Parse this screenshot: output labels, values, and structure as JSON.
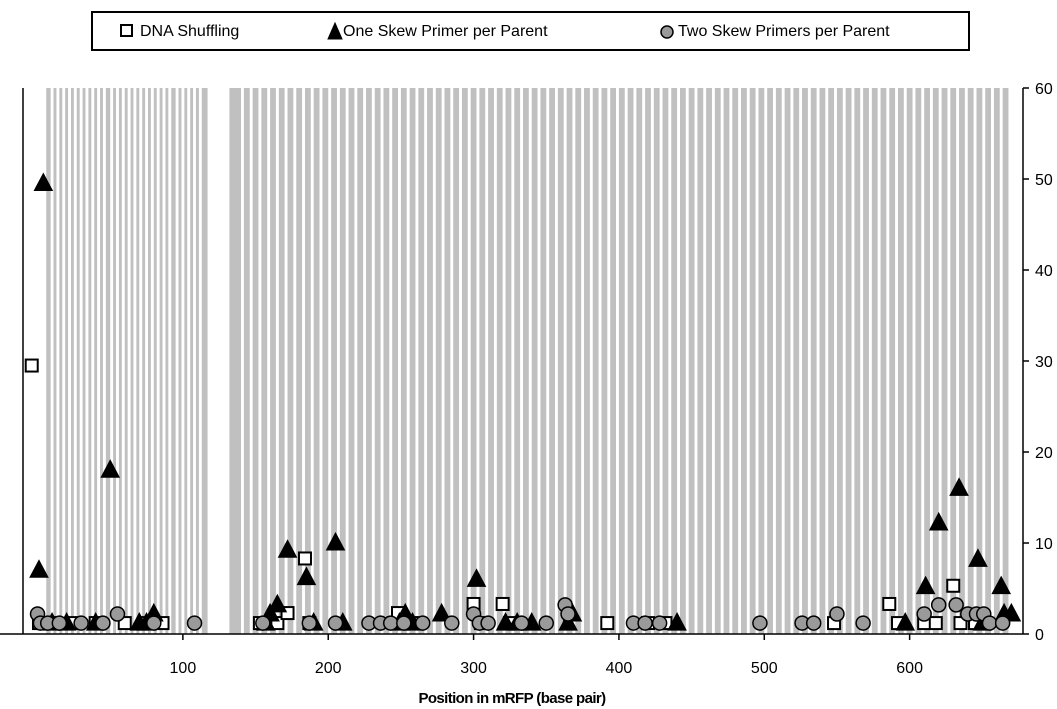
{
  "chart_data": {
    "type": "scatter",
    "xlabel": "Position in mRFP (base pair)",
    "ylabel": "",
    "xlim": [
      -10,
      678
    ],
    "ylim": [
      0,
      60
    ],
    "x_ticks": [
      100,
      200,
      300,
      400,
      500,
      600
    ],
    "y_ticks": [
      0,
      10,
      20,
      30,
      40,
      50,
      60
    ],
    "y_axis_side": "right",
    "legend_position": "top",
    "colors": {
      "band": "#c0c0c0",
      "marker_gray": "#9a9a9a",
      "marker_dark": "#000000"
    },
    "band_ranges": [
      [
        6,
        9
      ],
      [
        11,
        13
      ],
      [
        15,
        17
      ],
      [
        19,
        21
      ],
      [
        23,
        25
      ],
      [
        27,
        29
      ],
      [
        31,
        33
      ],
      [
        35,
        37
      ],
      [
        39,
        41
      ],
      [
        43,
        45
      ],
      [
        47,
        50
      ],
      [
        52,
        54
      ],
      [
        56,
        58
      ],
      [
        60,
        62
      ],
      [
        64,
        66
      ],
      [
        68,
        70
      ],
      [
        72,
        74
      ],
      [
        76,
        78
      ],
      [
        80,
        82
      ],
      [
        84,
        86
      ],
      [
        88,
        90
      ],
      [
        92,
        95
      ],
      [
        97,
        99
      ],
      [
        101,
        103
      ],
      [
        105,
        107
      ],
      [
        109,
        111
      ],
      [
        113,
        117
      ],
      [
        132,
        140
      ],
      [
        142,
        146
      ],
      [
        148,
        152
      ],
      [
        154,
        158
      ],
      [
        160,
        164
      ],
      [
        166,
        170
      ],
      [
        172,
        176
      ],
      [
        178,
        182
      ],
      [
        184,
        188
      ],
      [
        190,
        194
      ],
      [
        196,
        200
      ],
      [
        202,
        206
      ],
      [
        208,
        212
      ],
      [
        214,
        218
      ],
      [
        220,
        224
      ],
      [
        226,
        230
      ],
      [
        232,
        236
      ],
      [
        238,
        242
      ],
      [
        244,
        248
      ],
      [
        250,
        254
      ],
      [
        256,
        260
      ],
      [
        262,
        266
      ],
      [
        268,
        272
      ],
      [
        274,
        278
      ],
      [
        280,
        284
      ],
      [
        286,
        290
      ],
      [
        292,
        296
      ],
      [
        298,
        302
      ],
      [
        304,
        308
      ],
      [
        310,
        314
      ],
      [
        316,
        320
      ],
      [
        322,
        326
      ],
      [
        328,
        332
      ],
      [
        334,
        338
      ],
      [
        340,
        344
      ],
      [
        346,
        350
      ],
      [
        352,
        356
      ],
      [
        358,
        362
      ],
      [
        364,
        368
      ],
      [
        370,
        374
      ],
      [
        376,
        380
      ],
      [
        382,
        386
      ],
      [
        388,
        392
      ],
      [
        394,
        398
      ],
      [
        400,
        404
      ],
      [
        406,
        410
      ],
      [
        412,
        416
      ],
      [
        418,
        422
      ],
      [
        424,
        428
      ],
      [
        430,
        434
      ],
      [
        436,
        440
      ],
      [
        442,
        446
      ],
      [
        448,
        452
      ],
      [
        454,
        458
      ],
      [
        460,
        464
      ],
      [
        466,
        470
      ],
      [
        472,
        476
      ],
      [
        478,
        482
      ],
      [
        484,
        488
      ],
      [
        490,
        494
      ],
      [
        496,
        500
      ],
      [
        502,
        506
      ],
      [
        508,
        512
      ],
      [
        514,
        518
      ],
      [
        520,
        524
      ],
      [
        526,
        530
      ],
      [
        532,
        536
      ],
      [
        538,
        542
      ],
      [
        544,
        548
      ],
      [
        550,
        554
      ],
      [
        556,
        560
      ],
      [
        562,
        566
      ],
      [
        568,
        572
      ],
      [
        574,
        578
      ],
      [
        580,
        584
      ],
      [
        586,
        590
      ],
      [
        592,
        596
      ],
      [
        598,
        602
      ],
      [
        604,
        608
      ],
      [
        610,
        614
      ],
      [
        616,
        620
      ],
      [
        622,
        626
      ],
      [
        628,
        632
      ],
      [
        634,
        638
      ],
      [
        640,
        644
      ],
      [
        646,
        650
      ],
      [
        652,
        656
      ],
      [
        658,
        662
      ],
      [
        664,
        668
      ]
    ],
    "series": [
      {
        "name": "DNA Shuffling",
        "marker": "open-square",
        "points": [
          [
            -4,
            29.5
          ],
          [
            1,
            1.2
          ],
          [
            5,
            1.2
          ],
          [
            12,
            1.2
          ],
          [
            25,
            1.2
          ],
          [
            40,
            1.2
          ],
          [
            60,
            1.2
          ],
          [
            75,
            1.2
          ],
          [
            86,
            1.2
          ],
          [
            153,
            1.2
          ],
          [
            165,
            1.2
          ],
          [
            172,
            2.3
          ],
          [
            184,
            8.3
          ],
          [
            187,
            1.2
          ],
          [
            245,
            1.2
          ],
          [
            248,
            2.3
          ],
          [
            260,
            1.2
          ],
          [
            300,
            3.3
          ],
          [
            305,
            1.2
          ],
          [
            320,
            3.3
          ],
          [
            325,
            1.2
          ],
          [
            392,
            1.2
          ],
          [
            420,
            1.2
          ],
          [
            432,
            1.2
          ],
          [
            548,
            1.2
          ],
          [
            586,
            3.3
          ],
          [
            592,
            1.2
          ],
          [
            610,
            1.2
          ],
          [
            618,
            1.2
          ],
          [
            630,
            5.3
          ],
          [
            635,
            1.2
          ],
          [
            645,
            1.2
          ]
        ]
      },
      {
        "name": "One Skew Primer per Parent",
        "marker": "filled-triangle",
        "points": [
          [
            1,
            7
          ],
          [
            4,
            49.5
          ],
          [
            10,
            1.2
          ],
          [
            20,
            1.2
          ],
          [
            40,
            1.2
          ],
          [
            50,
            18
          ],
          [
            70,
            1.2
          ],
          [
            75,
            1.2
          ],
          [
            80,
            2.2
          ],
          [
            157,
            1.2
          ],
          [
            160,
            2.2
          ],
          [
            165,
            3.2
          ],
          [
            172,
            9.2
          ],
          [
            185,
            6.2
          ],
          [
            190,
            1.2
          ],
          [
            205,
            10
          ],
          [
            210,
            1.2
          ],
          [
            249,
            1.2
          ],
          [
            253,
            2.2
          ],
          [
            258,
            1.2
          ],
          [
            278,
            2.2
          ],
          [
            302,
            6
          ],
          [
            322,
            1.2
          ],
          [
            330,
            1.2
          ],
          [
            340,
            1.2
          ],
          [
            365,
            1.2
          ],
          [
            368,
            2.2
          ],
          [
            440,
            1.2
          ],
          [
            597,
            1.2
          ],
          [
            611,
            5.2
          ],
          [
            620,
            12.2
          ],
          [
            634,
            16
          ],
          [
            647,
            8.2
          ],
          [
            650,
            1.2
          ],
          [
            663,
            5.2
          ],
          [
            665,
            2.2
          ],
          [
            670,
            2.2
          ]
        ]
      },
      {
        "name": "Two Skew Primers per Parent",
        "marker": "gray-circle",
        "points": [
          [
            0,
            2.2
          ],
          [
            2,
            1.2
          ],
          [
            7,
            1.2
          ],
          [
            15,
            1.2
          ],
          [
            30,
            1.2
          ],
          [
            45,
            1.2
          ],
          [
            55,
            2.2
          ],
          [
            80,
            1.2
          ],
          [
            108,
            1.2
          ],
          [
            155,
            1.2
          ],
          [
            187,
            1.2
          ],
          [
            205,
            1.2
          ],
          [
            228,
            1.2
          ],
          [
            236,
            1.2
          ],
          [
            243,
            1.2
          ],
          [
            252,
            1.2
          ],
          [
            265,
            1.2
          ],
          [
            285,
            1.2
          ],
          [
            300,
            2.2
          ],
          [
            304,
            1.2
          ],
          [
            310,
            1.2
          ],
          [
            333,
            1.2
          ],
          [
            350,
            1.2
          ],
          [
            363,
            3.2
          ],
          [
            365,
            2.2
          ],
          [
            410,
            1.2
          ],
          [
            418,
            1.2
          ],
          [
            428,
            1.2
          ],
          [
            497,
            1.2
          ],
          [
            526,
            1.2
          ],
          [
            534,
            1.2
          ],
          [
            550,
            2.2
          ],
          [
            568,
            1.2
          ],
          [
            610,
            2.2
          ],
          [
            620,
            3.2
          ],
          [
            632,
            3.2
          ],
          [
            640,
            2.2
          ],
          [
            646,
            2.2
          ],
          [
            651,
            2.2
          ],
          [
            655,
            1.2
          ],
          [
            664,
            1.2
          ]
        ]
      }
    ]
  }
}
